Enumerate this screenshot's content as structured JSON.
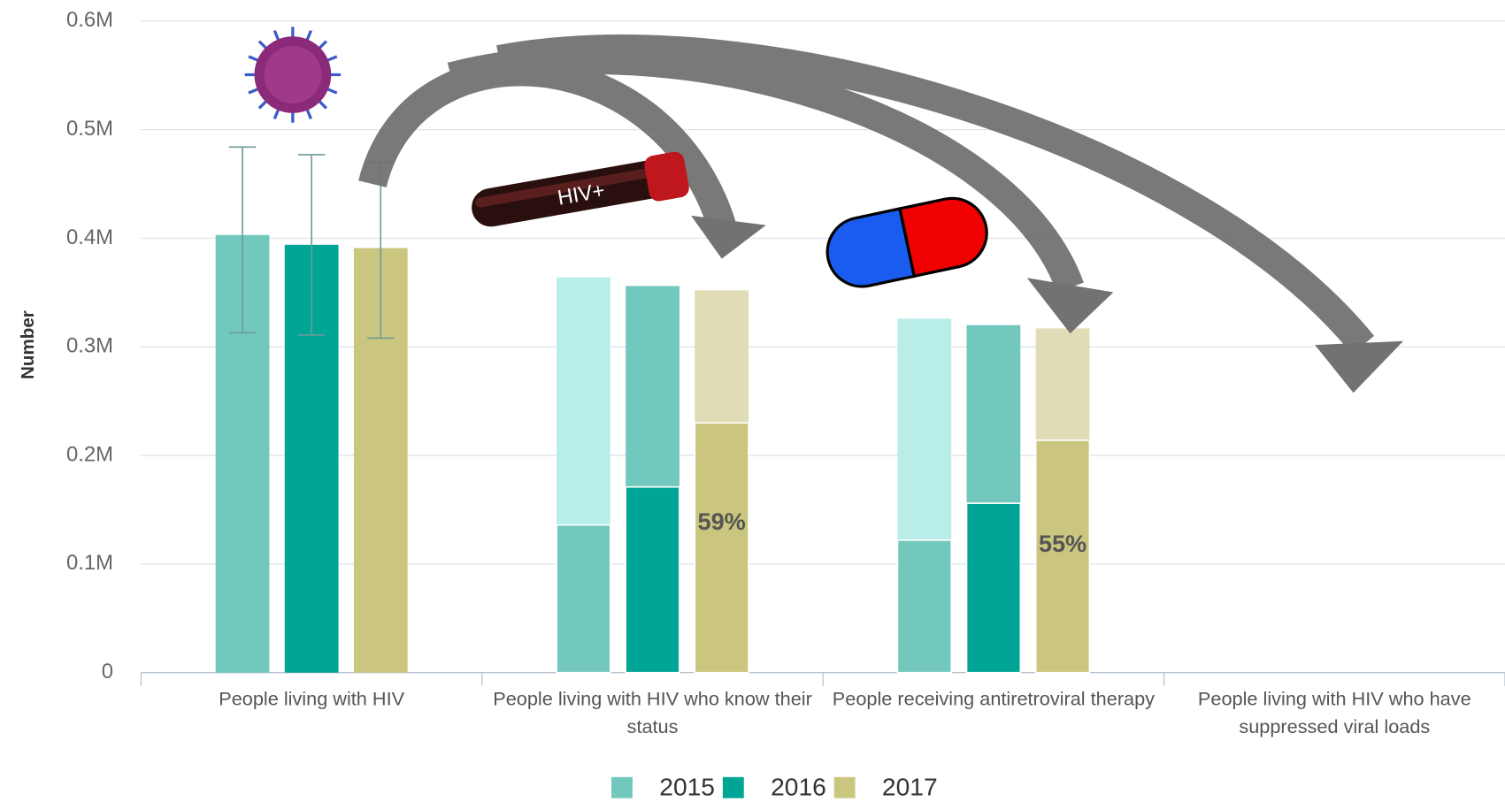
{
  "chart_data": {
    "type": "bar",
    "y_label": "Number",
    "categories": [
      "People living with HIV",
      "People living with HIV who know their status",
      "People receiving antiretroviral therapy",
      "People living with HIV who have suppressed viral loads"
    ],
    "series": [
      {
        "name": "2015",
        "color": "#72c8bd",
        "outer_color": "#b9ede8",
        "values": [
          403000,
          136000,
          122000,
          null
        ],
        "outer_values": [
          null,
          364000,
          326000,
          null
        ],
        "error_low": [
          313000,
          null,
          null,
          null
        ],
        "error_high": [
          484000,
          null,
          null,
          null
        ]
      },
      {
        "name": "2016",
        "color": "#00a596",
        "outer_color": "#72c8bd",
        "values": [
          394000,
          171000,
          156000,
          null
        ],
        "outer_values": [
          null,
          356000,
          320000,
          null
        ],
        "error_low": [
          311000,
          null,
          null,
          null
        ],
        "error_high": [
          477000,
          null,
          null,
          null
        ]
      },
      {
        "name": "2017",
        "color": "#cbc67f",
        "outer_color": "#dfdcb6",
        "values": [
          391000,
          230000,
          214000,
          null
        ],
        "outer_values": [
          null,
          352000,
          317000,
          null
        ],
        "error_low": [
          308000,
          null,
          null,
          null
        ],
        "error_high": [
          470000,
          null,
          null,
          null
        ]
      }
    ],
    "annotations": [
      {
        "text": "59%",
        "category": 1
      },
      {
        "text": "55%",
        "category": 2
      }
    ],
    "image_labels": {
      "tube": "HIV+"
    },
    "ylim": [
      0,
      600000
    ],
    "yticks": [
      0,
      {
        "value": 100000,
        "label": "0.1M"
      },
      {
        "value": 200000,
        "label": "0.2M"
      },
      {
        "value": 300000,
        "label": "0.3M"
      },
      {
        "value": 400000,
        "label": "0.4M"
      },
      {
        "value": 500000,
        "label": "0.5M"
      },
      {
        "value": 600000,
        "label": "0.6M"
      }
    ],
    "grid": true,
    "legend": "bottom"
  }
}
